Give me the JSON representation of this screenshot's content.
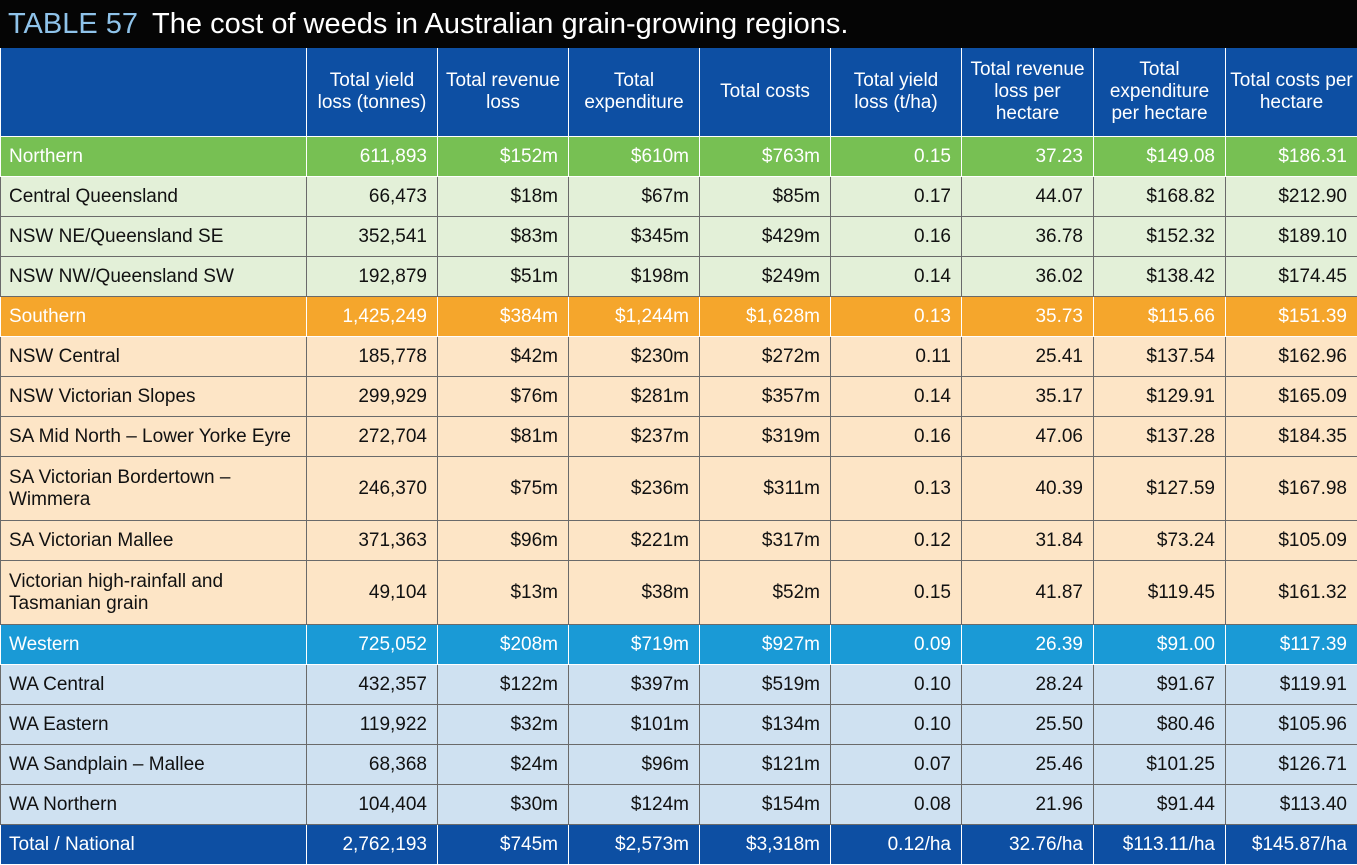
{
  "title": {
    "number": "TABLE 57",
    "text": "The cost of weeds in Australian grain-growing regions."
  },
  "columns": [
    "",
    "Total yield loss (tonnes)",
    "Total revenue loss",
    "Total expenditure",
    "Total costs",
    "Total yield loss (t/ha)",
    "Total revenue loss per hectare",
    "Total expenditure per hectare",
    "Total costs per hectare"
  ],
  "rows": [
    {
      "kind": "group",
      "region": "northern",
      "cells": [
        "Northern",
        "611,893",
        "$152m",
        "$610m",
        "$763m",
        "0.15",
        "37.23",
        "$149.08",
        "$186.31"
      ]
    },
    {
      "kind": "row",
      "region": "northern",
      "cells": [
        "Central Queensland",
        "66,473",
        "$18m",
        "$67m",
        "$85m",
        "0.17",
        "44.07",
        "$168.82",
        "$212.90"
      ]
    },
    {
      "kind": "row",
      "region": "northern",
      "cells": [
        "NSW NE/Queensland SE",
        "352,541",
        "$83m",
        "$345m",
        "$429m",
        "0.16",
        "36.78",
        "$152.32",
        "$189.10"
      ]
    },
    {
      "kind": "row",
      "region": "northern",
      "cells": [
        "NSW NW/Queensland SW",
        "192,879",
        "$51m",
        "$198m",
        "$249m",
        "0.14",
        "36.02",
        "$138.42",
        "$174.45"
      ]
    },
    {
      "kind": "group",
      "region": "southern",
      "cells": [
        "Southern",
        "1,425,249",
        "$384m",
        "$1,244m",
        "$1,628m",
        "0.13",
        "35.73",
        "$115.66",
        "$151.39"
      ]
    },
    {
      "kind": "row",
      "region": "southern",
      "cells": [
        "NSW Central",
        "185,778",
        "$42m",
        "$230m",
        "$272m",
        "0.11",
        "25.41",
        "$137.54",
        "$162.96"
      ]
    },
    {
      "kind": "row",
      "region": "southern",
      "cells": [
        "NSW Victorian Slopes",
        "299,929",
        "$76m",
        "$281m",
        "$357m",
        "0.14",
        "35.17",
        "$129.91",
        "$165.09"
      ]
    },
    {
      "kind": "row",
      "region": "southern",
      "cells": [
        "SA Mid North – Lower Yorke Eyre",
        "272,704",
        "$81m",
        "$237m",
        "$319m",
        "0.16",
        "47.06",
        "$137.28",
        "$184.35"
      ]
    },
    {
      "kind": "row",
      "region": "southern",
      "tall": true,
      "cells": [
        "SA Victorian Bordertown – Wimmera",
        "246,370",
        "$75m",
        "$236m",
        "$311m",
        "0.13",
        "40.39",
        "$127.59",
        "$167.98"
      ]
    },
    {
      "kind": "row",
      "region": "southern",
      "cells": [
        "SA Victorian Mallee",
        "371,363",
        "$96m",
        "$221m",
        "$317m",
        "0.12",
        "31.84",
        "$73.24",
        "$105.09"
      ]
    },
    {
      "kind": "row",
      "region": "southern",
      "tall": true,
      "cells": [
        "Victorian high-rainfall and Tasmanian grain",
        "49,104",
        "$13m",
        "$38m",
        "$52m",
        "0.15",
        "41.87",
        "$119.45",
        "$161.32"
      ]
    },
    {
      "kind": "group",
      "region": "western",
      "cells": [
        "Western",
        "725,052",
        "$208m",
        "$719m",
        "$927m",
        "0.09",
        "26.39",
        "$91.00",
        "$117.39"
      ]
    },
    {
      "kind": "row",
      "region": "western",
      "cells": [
        "WA Central",
        "432,357",
        "$122m",
        "$397m",
        "$519m",
        "0.10",
        "28.24",
        "$91.67",
        "$119.91"
      ]
    },
    {
      "kind": "row",
      "region": "western",
      "cells": [
        "WA Eastern",
        "119,922",
        "$32m",
        "$101m",
        "$134m",
        "0.10",
        "25.50",
        "$80.46",
        "$105.96"
      ]
    },
    {
      "kind": "row",
      "region": "western",
      "cells": [
        "WA Sandplain – Mallee",
        "68,368",
        "$24m",
        "$96m",
        "$121m",
        "0.07",
        "25.46",
        "$101.25",
        "$126.71"
      ]
    },
    {
      "kind": "row",
      "region": "western",
      "cells": [
        "WA Northern",
        "104,404",
        "$30m",
        "$124m",
        "$154m",
        "0.08",
        "21.96",
        "$91.44",
        "$113.40"
      ]
    },
    {
      "kind": "total",
      "region": "national",
      "cells": [
        "Total / National",
        "2,762,193",
        "$745m",
        "$2,573m",
        "$3,318m",
        "0.12/ha",
        "32.76/ha",
        "$113.11/ha",
        "$145.87/ha"
      ]
    }
  ],
  "colors": {
    "header": "#0d4fa3",
    "northern_group": "#77c053",
    "northern_row": "#e3f0d8",
    "southern_group": "#f5a62c",
    "southern_row": "#fde5c6",
    "western_group": "#1a9ad6",
    "western_row": "#cfe1f1",
    "total": "#0d4fa3"
  }
}
